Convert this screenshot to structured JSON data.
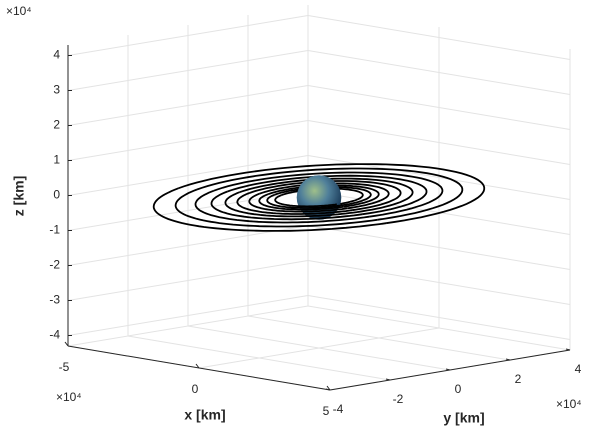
{
  "chart_data": {
    "type": "orbit3d",
    "xlabel": "x [km]",
    "ylabel": "y [km]",
    "zlabel": "z [km]",
    "x_exponent": "×10⁴",
    "y_exponent": "×10⁴",
    "z_exponent": "×10⁴",
    "xlim": [
      -5,
      5
    ],
    "ylim": [
      -4,
      4
    ],
    "zlim": [
      -4.3,
      4.3
    ],
    "xticks": [
      -5,
      0,
      5
    ],
    "yticks": [
      -4,
      -2,
      0,
      2,
      4
    ],
    "zticks": [
      -4,
      -3,
      -2,
      -1,
      0,
      1,
      2,
      3,
      4
    ],
    "grid": true,
    "orbit_radii": [
      4.15,
      3.6,
      3.1,
      2.7,
      2.35,
      2.05,
      1.75,
      1.5,
      1.3,
      1.1
    ],
    "orbit_color": "#000000",
    "earth_radius": 0.6371
  }
}
